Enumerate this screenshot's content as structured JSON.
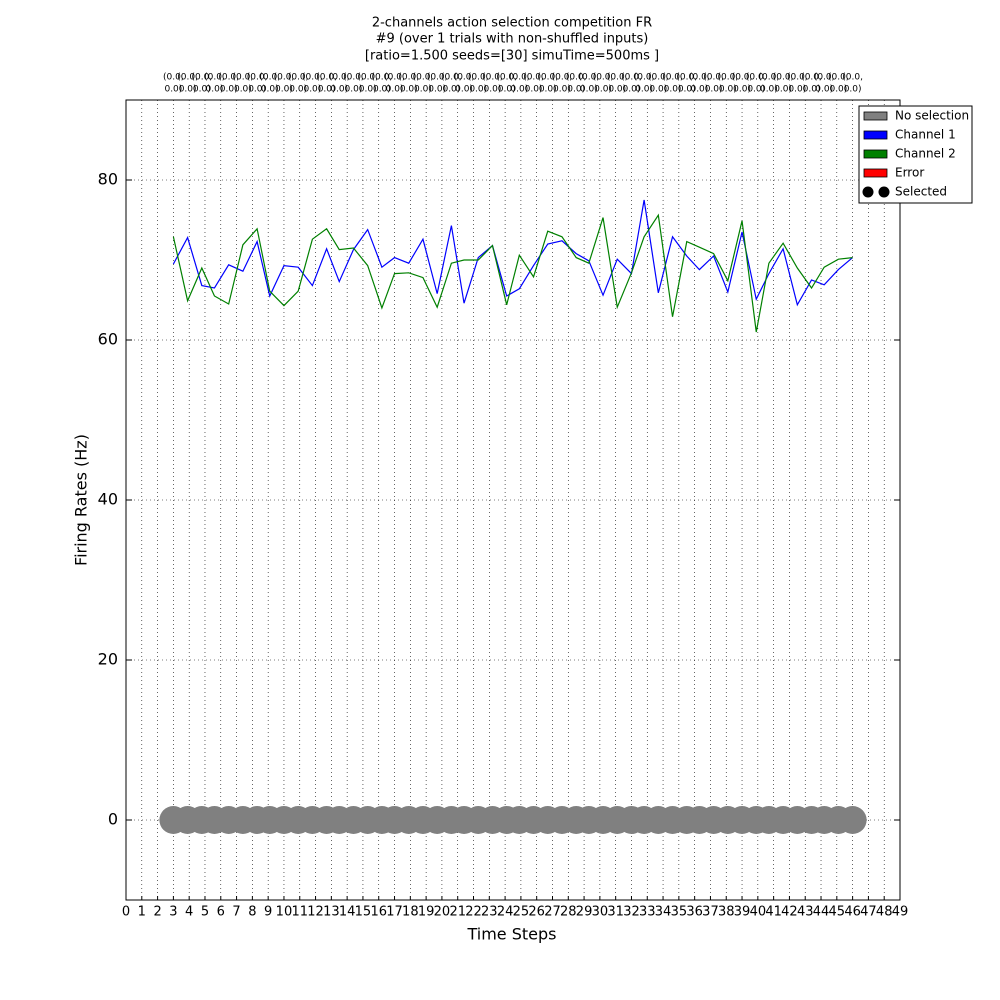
{
  "chart_data": {
    "type": "line",
    "title": [
      "2-channels action selection competition FR",
      "#9 (over 1 trials with non-shuffled inputs)",
      "[ratio=1.500 seeds=[30] simuTime=500ms ]"
    ],
    "xlabel": "Time Steps",
    "ylabel": "Firing Rates (Hz)",
    "xlim": [
      0,
      49
    ],
    "ylim": [
      -10,
      90
    ],
    "xticks": [
      0,
      1,
      2,
      3,
      4,
      5,
      6,
      7,
      8,
      9,
      10,
      11,
      12,
      13,
      14,
      15,
      16,
      17,
      18,
      19,
      20,
      21,
      22,
      23,
      24,
      25,
      26,
      27,
      28,
      29,
      30,
      31,
      32,
      33,
      34,
      35,
      36,
      37,
      38,
      39,
      40,
      41,
      42,
      43,
      44,
      45,
      46,
      47,
      48,
      49
    ],
    "yticks": [
      0,
      20,
      40,
      60,
      80
    ],
    "grid": true,
    "x": [
      3.0,
      3.9,
      4.8,
      5.6,
      6.5,
      7.4,
      8.3,
      9.1,
      10.0,
      10.9,
      11.8,
      12.7,
      13.5,
      14.4,
      15.3,
      16.2,
      17.0,
      17.9,
      18.8,
      19.7,
      20.6,
      21.4,
      22.3,
      23.2,
      24.1,
      24.9,
      25.8,
      26.7,
      27.6,
      28.5,
      29.3,
      30.2,
      31.1,
      32.0,
      32.8,
      33.7,
      34.6,
      35.5,
      36.3,
      37.2,
      38.1,
      39.0,
      39.9,
      40.7,
      41.6,
      42.5,
      43.4,
      44.2,
      45.1,
      46.0
    ],
    "series": [
      {
        "color": "#0000ff",
        "values": [
          69.5,
          72.8,
          66.8,
          66.5,
          69.4,
          68.6,
          72.3,
          65.5,
          69.3,
          69.1,
          66.8,
          71.4,
          67.3,
          71.3,
          73.8,
          69.1,
          70.3,
          69.6,
          72.6,
          65.8,
          74.3,
          64.6,
          70.3,
          71.8,
          65.5,
          66.4,
          69.3,
          72.0,
          72.4,
          70.8,
          69.9,
          65.6,
          70.1,
          68.3,
          77.5,
          65.9,
          72.9,
          70.5,
          68.8,
          70.5,
          66.0,
          73.5,
          65.1,
          68.3,
          71.4,
          64.4,
          67.5,
          66.9,
          68.8,
          70.3
        ]
      },
      {
        "color": "#008000",
        "values": [
          72.9,
          64.9,
          69.0,
          65.5,
          64.5,
          71.9,
          73.9,
          66.1,
          64.3,
          66.1,
          72.6,
          73.9,
          71.3,
          71.5,
          69.3,
          64.0,
          68.3,
          68.4,
          67.8,
          64.1,
          69.6,
          70.0,
          70.0,
          71.8,
          64.4,
          70.6,
          67.9,
          73.6,
          72.9,
          70.3,
          69.6,
          75.3,
          64.1,
          68.4,
          72.9,
          75.6,
          62.9,
          72.3,
          71.6,
          70.8,
          67.4,
          74.9,
          61.0,
          69.6,
          72.1,
          69.0,
          66.5,
          69.1,
          70.1,
          70.3
        ]
      }
    ],
    "markers": {
      "color": "#808080",
      "values": [
        0,
        0,
        0,
        0,
        0,
        0,
        0,
        0,
        0,
        0,
        0,
        0,
        0,
        0,
        0,
        0,
        0,
        0,
        0,
        0,
        0,
        0,
        0,
        0,
        0,
        0,
        0,
        0,
        0,
        0,
        0,
        0,
        0,
        0,
        0,
        0,
        0,
        0,
        0,
        0,
        0,
        0,
        0,
        0,
        0,
        0,
        0,
        0,
        0,
        0
      ]
    },
    "top_labels": [
      [
        "(0.0,",
        "0.0)"
      ],
      [
        "(0.0,",
        "0.0)"
      ],
      [
        "(0.0,",
        "0.0)"
      ],
      [
        "(0.0,",
        "0.0)"
      ],
      [
        "(0.0,",
        "0.0)"
      ],
      [
        "(0.0,",
        "0.0)"
      ],
      [
        "(0.0,",
        "0.0)"
      ],
      [
        "(0.0,",
        "0.0)"
      ],
      [
        "(0.0,",
        "0.0)"
      ],
      [
        "(0.0,",
        "0.0)"
      ],
      [
        "(0.0,",
        "0.0)"
      ],
      [
        "(0.0,",
        "0.0)"
      ],
      [
        "(0.0,",
        "0.0)"
      ],
      [
        "(0.0,",
        "0.0)"
      ],
      [
        "(0.0,",
        "0.0)"
      ],
      [
        "(0.0,",
        "0.0)"
      ],
      [
        "(0.0,",
        "0.0)"
      ],
      [
        "(0.0,",
        "0.0)"
      ],
      [
        "(0.0,",
        "0.0)"
      ],
      [
        "(0.0,",
        "0.0)"
      ],
      [
        "(0.0,",
        "0.0)"
      ],
      [
        "(0.0,",
        "0.0)"
      ],
      [
        "(0.0,",
        "0.0)"
      ],
      [
        "(0.0,",
        "0.0)"
      ],
      [
        "(0.0,",
        "0.0)"
      ],
      [
        "(0.0,",
        "0.0)"
      ],
      [
        "(0.0,",
        "0.0)"
      ],
      [
        "(0.0,",
        "0.0)"
      ],
      [
        "(0.0,",
        "0.0)"
      ],
      [
        "(0.0,",
        "0.0)"
      ],
      [
        "(0.0,",
        "0.0)"
      ],
      [
        "(0.0,",
        "0.0)"
      ],
      [
        "(0.0,",
        "0.0)"
      ],
      [
        "(0.0,",
        "0.0)"
      ],
      [
        "(0.0,",
        "0.0)"
      ],
      [
        "(0.0,",
        "0.0)"
      ],
      [
        "(0.0,",
        "0.0)"
      ],
      [
        "(0.0,",
        "0.0)"
      ],
      [
        "(0.0,",
        "0.0)"
      ],
      [
        "(0.0,",
        "0.0)"
      ],
      [
        "(0.0,",
        "0.0)"
      ],
      [
        "(0.0,",
        "0.0)"
      ],
      [
        "(0.0,",
        "0.0)"
      ],
      [
        "(0.0,",
        "0.0)"
      ],
      [
        "(0.0,",
        "0.0)"
      ],
      [
        "(0.0,",
        "0.0)"
      ],
      [
        "(0.0,",
        "0.0)"
      ],
      [
        "(0.0,",
        "0.0)"
      ],
      [
        "(0.0,",
        "0.0)"
      ],
      [
        "(0.0,",
        "0.0)"
      ]
    ],
    "legend_position": "upper right",
    "legend": [
      {
        "name": "No selection",
        "color": "#808080",
        "kind": "patch"
      },
      {
        "name": "Channel 1",
        "color": "#0000ff",
        "kind": "patch"
      },
      {
        "name": "Channel 2",
        "color": "#008000",
        "kind": "patch"
      },
      {
        "name": "Error",
        "color": "#ff0000",
        "kind": "patch"
      },
      {
        "name": "Selected",
        "color": "#000000",
        "kind": "dots"
      }
    ]
  }
}
